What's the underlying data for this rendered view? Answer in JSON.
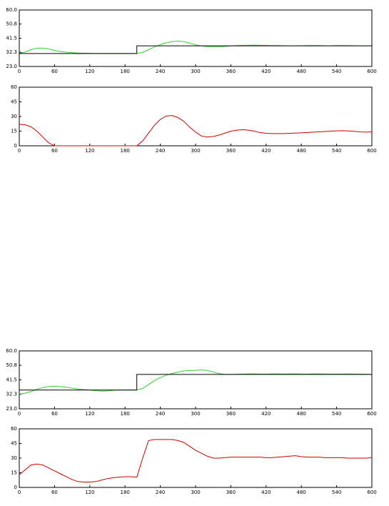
{
  "chart_data": [
    {
      "type": "line",
      "x": [
        0,
        10,
        20,
        30,
        40,
        50,
        60,
        70,
        80,
        90,
        100,
        110,
        120,
        130,
        140,
        150,
        160,
        170,
        180,
        190,
        200,
        200,
        210,
        220,
        230,
        240,
        250,
        260,
        270,
        280,
        290,
        300,
        310,
        320,
        330,
        340,
        350,
        360,
        370,
        380,
        390,
        400,
        410,
        420,
        430,
        440,
        450,
        460,
        470,
        480,
        490,
        500,
        510,
        520,
        530,
        540,
        550,
        560,
        570,
        580,
        590,
        600
      ],
      "series": [
        {
          "color": "#33cc33",
          "values": [
            31.5,
            32.5,
            34,
            35,
            35,
            34.5,
            33.5,
            32.8,
            32.3,
            32,
            31.8,
            31.7,
            31.6,
            31.5,
            31.5,
            31.5,
            31.5,
            31.5,
            31.5,
            31.5,
            31.5,
            31.5,
            32.3,
            34,
            35.8,
            37.3,
            38.5,
            39.3,
            39.6,
            39.3,
            38.3,
            37.2,
            36.5,
            36.1,
            36,
            36,
            36.2,
            36.5,
            36.7,
            36.8,
            36.9,
            37,
            36.9,
            36.8,
            36.7,
            36.7,
            36.6,
            36.6,
            36.6,
            36.6,
            36.7,
            36.7,
            36.7,
            36.6,
            36.6,
            36.7,
            36.7,
            36.7,
            36.6,
            36.6,
            36.6,
            36.6
          ]
        },
        {
          "color": "#000000",
          "values": [
            31.5,
            31.5,
            31.5,
            31.5,
            31.5,
            31.5,
            31.5,
            31.5,
            31.5,
            31.5,
            31.5,
            31.5,
            31.5,
            31.5,
            31.5,
            31.5,
            31.5,
            31.5,
            31.5,
            31.5,
            31.5,
            36.5,
            36.5,
            36.5,
            36.5,
            36.5,
            36.5,
            36.5,
            36.5,
            36.5,
            36.5,
            36.5,
            36.5,
            36.5,
            36.5,
            36.5,
            36.5,
            36.5,
            36.5,
            36.5,
            36.5,
            36.5,
            36.5,
            36.5,
            36.5,
            36.5,
            36.5,
            36.5,
            36.5,
            36.5,
            36.5,
            36.5,
            36.5,
            36.5,
            36.5,
            36.5,
            36.5,
            36.5,
            36.5,
            36.5,
            36.5,
            36.5
          ]
        }
      ],
      "xlim": [
        0,
        600
      ],
      "xticks": [
        0,
        60,
        120,
        180,
        240,
        300,
        360,
        420,
        480,
        540,
        600
      ],
      "ylim": [
        23,
        60
      ],
      "yticks": [
        {
          "value": 23,
          "label": "23.0"
        },
        32.3,
        41.5,
        50.8,
        {
          "value": 60,
          "label": "60.0"
        }
      ]
    },
    {
      "type": "line",
      "x": [
        0,
        10,
        20,
        30,
        40,
        50,
        60,
        70,
        80,
        90,
        100,
        110,
        120,
        130,
        140,
        150,
        160,
        170,
        180,
        190,
        200,
        210,
        220,
        230,
        240,
        250,
        260,
        270,
        280,
        290,
        300,
        310,
        320,
        330,
        340,
        350,
        360,
        370,
        380,
        390,
        400,
        410,
        420,
        430,
        440,
        450,
        460,
        470,
        480,
        490,
        500,
        510,
        520,
        530,
        540,
        550,
        560,
        570,
        580,
        590,
        600
      ],
      "series": [
        {
          "color": "#cc0000",
          "values": [
            22,
            21.5,
            19.5,
            15,
            9,
            3,
            0,
            0,
            0,
            0,
            0,
            0,
            0,
            0,
            0,
            0,
            0,
            0,
            0,
            0,
            0,
            5,
            13,
            21,
            27,
            30.5,
            31,
            29,
            25,
            19,
            14,
            10,
            9,
            9.5,
            11,
            13,
            15,
            16,
            16.5,
            16,
            15,
            13.5,
            12.8,
            12.5,
            12.5,
            12.5,
            12.8,
            13,
            13.3,
            13.6,
            14,
            14.3,
            14.6,
            15,
            15.3,
            15.5,
            15.2,
            14.8,
            14.3,
            14,
            14.3
          ]
        }
      ],
      "xlim": [
        0,
        600
      ],
      "xticks": [
        0,
        60,
        120,
        180,
        240,
        300,
        360,
        420,
        480,
        540,
        600
      ],
      "ylim": [
        0,
        60
      ],
      "yticks": [
        0,
        15,
        30,
        45,
        60
      ]
    },
    {
      "type": "line",
      "x": [
        0,
        10,
        20,
        30,
        40,
        50,
        60,
        70,
        80,
        90,
        100,
        110,
        120,
        130,
        140,
        150,
        160,
        170,
        180,
        190,
        200,
        200,
        210,
        220,
        230,
        240,
        250,
        260,
        270,
        280,
        290,
        300,
        310,
        320,
        330,
        340,
        350,
        360,
        370,
        380,
        390,
        400,
        410,
        420,
        430,
        440,
        450,
        460,
        470,
        480,
        490,
        500,
        510,
        520,
        530,
        540,
        550,
        560,
        570,
        580,
        590,
        600
      ],
      "series": [
        {
          "color": "#33cc33",
          "values": [
            32.5,
            33,
            34,
            35.5,
            36.5,
            37.3,
            37.5,
            37.2,
            36.7,
            36.2,
            35.7,
            35.3,
            35,
            34.6,
            34.3,
            34.4,
            34.8,
            35,
            35,
            35,
            35,
            35,
            36,
            38.5,
            41,
            43,
            44.5,
            45.5,
            46.5,
            47.2,
            47.5,
            47.6,
            47.9,
            47.5,
            46.5,
            45.5,
            45,
            45,
            45.1,
            45.2,
            45.3,
            45.3,
            45.2,
            45.2,
            45.3,
            45.3,
            45.2,
            45.3,
            45.3,
            45.2,
            45.2,
            45.3,
            45.3,
            45.2,
            45.2,
            45.2,
            45.2,
            45.3,
            45.2,
            45.2,
            45.1,
            45
          ]
        },
        {
          "color": "#000000",
          "values": [
            35,
            35,
            35,
            35,
            35,
            35,
            35,
            35,
            35,
            35,
            35,
            35,
            35,
            35,
            35,
            35,
            35,
            35,
            35,
            35,
            35,
            45,
            45,
            45,
            45,
            45,
            45,
            45,
            45,
            45,
            45,
            45,
            45,
            45,
            45,
            45,
            45,
            45,
            45,
            45,
            45,
            45,
            45,
            45,
            45,
            45,
            45,
            45,
            45,
            45,
            45,
            45,
            45,
            45,
            45,
            45,
            45,
            45,
            45,
            45,
            45,
            45
          ]
        }
      ],
      "xlim": [
        0,
        600
      ],
      "xticks": [
        0,
        60,
        120,
        180,
        240,
        300,
        360,
        420,
        480,
        540,
        600
      ],
      "ylim": [
        23,
        60
      ],
      "yticks": [
        {
          "value": 23,
          "label": "23.0"
        },
        32.3,
        41.5,
        50.8,
        {
          "value": 60,
          "label": "60.0"
        }
      ]
    },
    {
      "type": "line",
      "x": [
        0,
        10,
        20,
        30,
        40,
        50,
        60,
        70,
        80,
        90,
        100,
        110,
        120,
        130,
        140,
        150,
        160,
        170,
        180,
        190,
        200,
        210,
        220,
        230,
        240,
        250,
        260,
        270,
        280,
        290,
        300,
        310,
        320,
        330,
        340,
        350,
        360,
        370,
        380,
        390,
        400,
        410,
        420,
        430,
        440,
        450,
        460,
        470,
        480,
        490,
        500,
        510,
        520,
        530,
        540,
        550,
        560,
        570,
        580,
        590,
        600
      ],
      "series": [
        {
          "color": "#cc0000",
          "values": [
            13,
            18,
            23,
            24,
            23,
            20,
            17,
            14,
            11,
            8,
            6,
            5.5,
            5.5,
            6,
            7.5,
            9,
            10,
            10.5,
            11,
            11,
            10.5,
            30,
            48,
            49,
            49,
            49,
            49,
            48,
            46,
            42,
            38,
            35,
            32,
            30,
            30,
            30.5,
            31,
            31,
            31,
            31,
            31,
            31,
            30.5,
            30.5,
            31,
            31.5,
            32,
            32.5,
            31.5,
            31,
            31,
            31,
            30.5,
            30.5,
            30.5,
            30.5,
            30,
            30,
            30,
            30,
            30.5
          ]
        }
      ],
      "xlim": [
        0,
        600
      ],
      "xticks": [
        0,
        60,
        120,
        180,
        240,
        300,
        360,
        420,
        480,
        540,
        600
      ],
      "ylim": [
        0,
        60
      ],
      "yticks": [
        0,
        15,
        30,
        45,
        60
      ]
    }
  ]
}
